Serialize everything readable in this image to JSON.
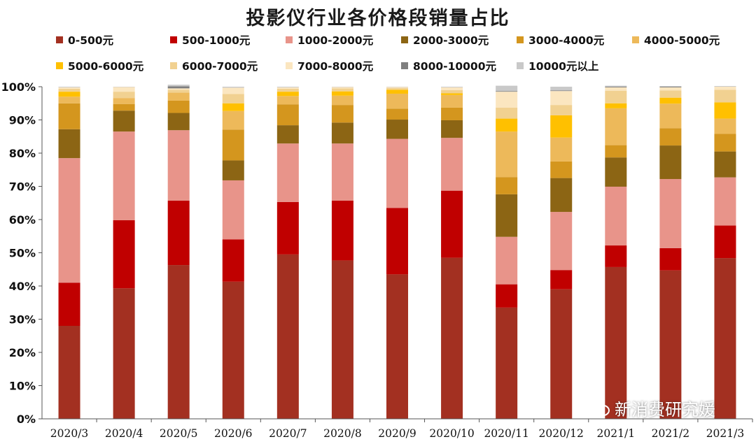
{
  "chart_data": {
    "type": "bar",
    "stacked": true,
    "title": "投影仪行业各价格段销量占比",
    "xlabel": "",
    "ylabel": "",
    "ylim": [
      0,
      100
    ],
    "y_ticks": [
      "0%",
      "10%",
      "20%",
      "30%",
      "40%",
      "50%",
      "60%",
      "70%",
      "80%",
      "90%",
      "100%"
    ],
    "legend_position": "top",
    "categories": [
      "2020/3",
      "2020/4",
      "2020/5",
      "2020/6",
      "2020/7",
      "2020/8",
      "2020/9",
      "2020/10",
      "2020/11",
      "2020/12",
      "2021/1",
      "2021/2",
      "2021/3"
    ],
    "series": [
      {
        "name": "0-500元",
        "color": "#a33021",
        "values": [
          28.0,
          39.3,
          46.3,
          41.3,
          49.5,
          47.7,
          43.5,
          48.5,
          33.5,
          39.0,
          45.7,
          44.7,
          48.4
        ]
      },
      {
        "name": "500-1000元",
        "color": "#c00000",
        "values": [
          13.0,
          20.5,
          19.4,
          12.7,
          15.8,
          18.0,
          20.0,
          20.2,
          7.0,
          5.8,
          6.5,
          6.7,
          9.8
        ]
      },
      {
        "name": "1000-2000元",
        "color": "#e8948a",
        "values": [
          37.5,
          26.7,
          21.2,
          17.8,
          17.6,
          17.2,
          20.8,
          15.9,
          14.3,
          17.5,
          17.7,
          20.8,
          14.5
        ]
      },
      {
        "name": "2000-3000元",
        "color": "#8c6514",
        "values": [
          8.7,
          6.3,
          5.2,
          6.0,
          5.5,
          6.3,
          5.8,
          5.3,
          12.8,
          10.2,
          8.8,
          10.1,
          7.8
        ]
      },
      {
        "name": "3000-4000元",
        "color": "#d4961e",
        "values": [
          7.8,
          2.0,
          3.7,
          9.3,
          6.3,
          5.3,
          3.3,
          3.8,
          5.2,
          5.0,
          3.7,
          5.2,
          5.3
        ]
      },
      {
        "name": "4000-5000元",
        "color": "#edb95a",
        "values": [
          2.0,
          1.8,
          2.4,
          5.6,
          2.5,
          2.8,
          4.5,
          3.8,
          13.7,
          7.2,
          11.1,
          7.4,
          4.6
        ]
      },
      {
        "name": "5000-6000元",
        "color": "#ffc000",
        "values": [
          1.5,
          0.0,
          0.0,
          2.3,
          1.3,
          1.3,
          1.2,
          0.5,
          3.9,
          6.7,
          1.5,
          1.8,
          4.9
        ]
      },
      {
        "name": "6000-7000元",
        "color": "#f1d191",
        "values": [
          0.9,
          1.9,
          0.9,
          2.8,
          0.9,
          0.9,
          0.5,
          1.0,
          3.3,
          3.1,
          3.8,
          2.2,
          3.8
        ]
      },
      {
        "name": "7000-8000元",
        "color": "#fbe6c0",
        "values": [
          0.4,
          1.4,
          0.4,
          1.9,
          0.4,
          0.4,
          0.3,
          0.8,
          4.8,
          4.2,
          1.0,
          0.9,
          0.9
        ]
      },
      {
        "name": "8000-10000元",
        "color": "#7f7f7f",
        "values": [
          0.0,
          0.0,
          0.6,
          0.0,
          0.0,
          0.0,
          0.0,
          0.0,
          0.2,
          0.2,
          0.2,
          0.2,
          0.0
        ]
      },
      {
        "name": "10000元以上",
        "color": "#c9c9c9",
        "values": [
          0.2,
          0.1,
          0.5,
          0.3,
          0.2,
          0.1,
          0.1,
          0.2,
          1.6,
          1.1,
          0.3,
          0.2,
          0.2
        ]
      }
    ]
  },
  "watermark": {
    "text": "新消费研究媛",
    "icon": "chat-bubble-icon"
  }
}
